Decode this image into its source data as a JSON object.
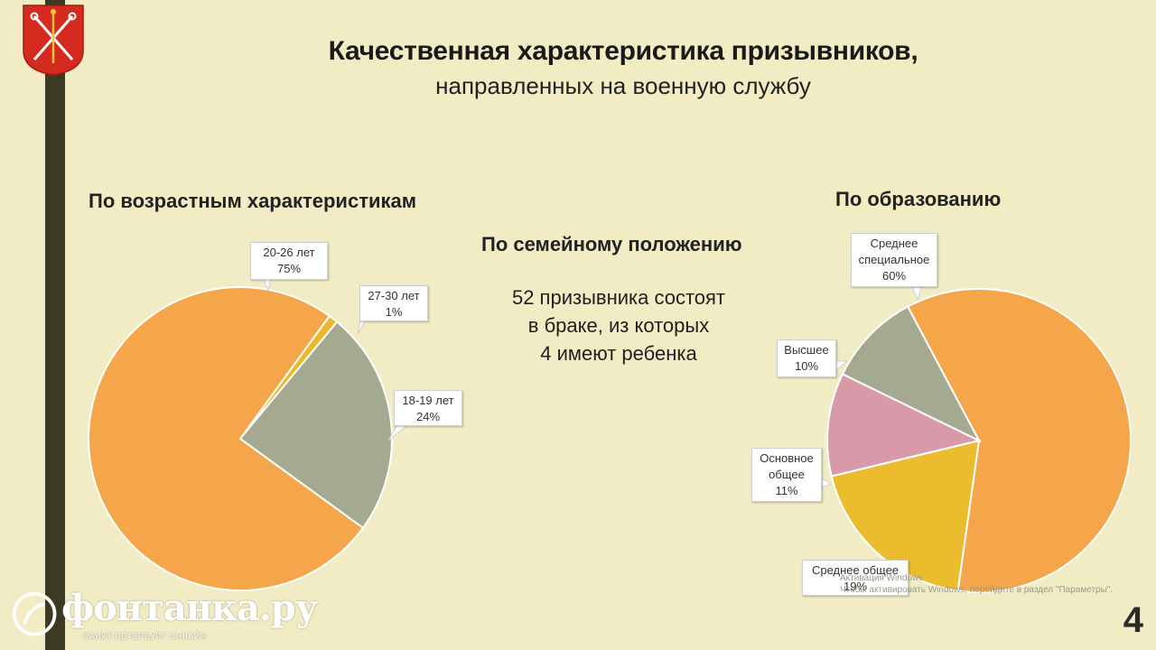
{
  "slide": {
    "title": "Качественная характеристика призывников,",
    "subtitle": "направленных на военную службу",
    "page_number": "4"
  },
  "age": {
    "heading": "По возрастным характеристикам",
    "slices": [
      {
        "label": "20-26 лет",
        "value_text": "75%",
        "value": 75,
        "color": "#f5a54a"
      },
      {
        "label": "27-30 лет",
        "value_text": "1%",
        "value": 1,
        "color": "#e9b92a"
      },
      {
        "label": "18-19 лет",
        "value_text": "24%",
        "value": 24,
        "color": "#a5a98f"
      }
    ]
  },
  "family": {
    "heading": "По семейному положению",
    "lines": [
      "52 призывника состоят",
      "в браке, из которых",
      "4 имеют ребенка"
    ]
  },
  "education": {
    "heading": "По образованию",
    "slices": [
      {
        "label_lines": [
          "Среднее",
          "специальное"
        ],
        "value_text": "60%",
        "value": 60,
        "color": "#f5a54a"
      },
      {
        "label_lines": [
          "Среднее общее"
        ],
        "value_text": "19%",
        "value": 19,
        "color": "#ebbd2e"
      },
      {
        "label_lines": [
          "Основное",
          "общее"
        ],
        "value_text": "11%",
        "value": 11,
        "color": "#d89aa8"
      },
      {
        "label_lines": [
          "Высшее"
        ],
        "value_text": "10%",
        "value": 10,
        "color": "#a5a98f"
      }
    ]
  },
  "watermark": {
    "brand": "фонтанка.ру",
    "tagline": "САНКТ-ПЕТЕРБУРГ ОНЛАЙН"
  },
  "activation": {
    "line1": "Активация Windows",
    "line2": "Чтобы активировать Windows, перейдите в раздел \"Параметры\"."
  },
  "icons": {
    "emblem": "saint-petersburg-coat-of-arms-icon",
    "watermark": "fontanka-logo-icon"
  },
  "chart_data": [
    {
      "type": "pie",
      "title": "По возрастным характеристикам",
      "categories": [
        "20-26 лет",
        "27-30 лет",
        "18-19 лет"
      ],
      "values": [
        75,
        1,
        24
      ]
    },
    {
      "type": "pie",
      "title": "По образованию",
      "categories": [
        "Среднее специальное",
        "Среднее общее",
        "Основное общее",
        "Высшее"
      ],
      "values": [
        60,
        19,
        11,
        10
      ]
    }
  ]
}
